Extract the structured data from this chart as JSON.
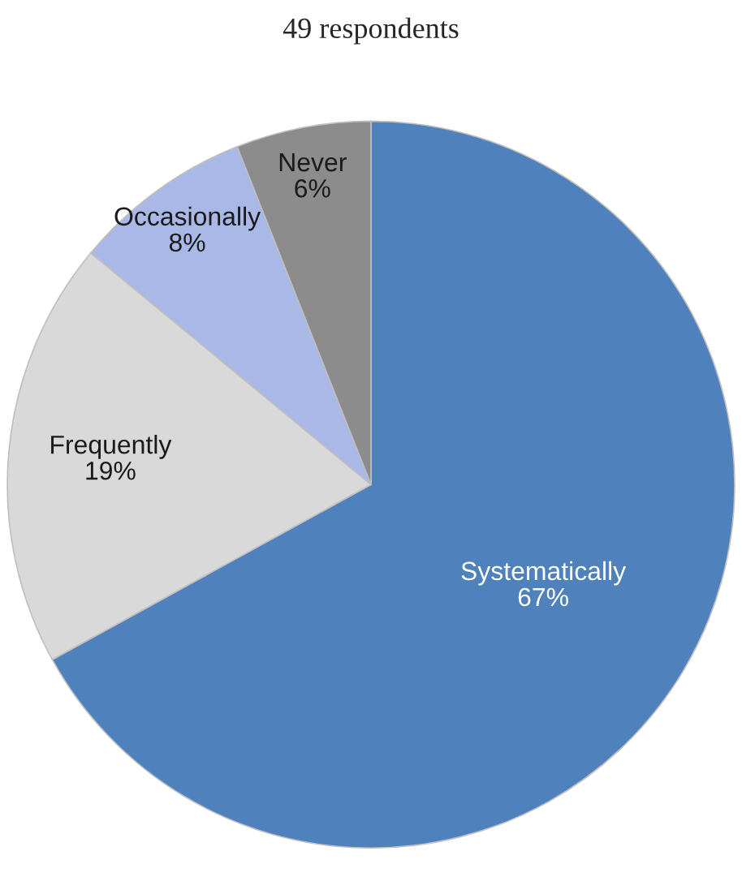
{
  "chart_data": {
    "type": "pie",
    "title": "49 respondents",
    "categories": [
      "Systematically",
      "Frequently",
      "Occasionally",
      "Never"
    ],
    "values": [
      67,
      19,
      8,
      6
    ],
    "value_labels": [
      "67%",
      "19%",
      "8%",
      "6%"
    ],
    "colors": [
      "#4f81bd",
      "#d9d9d9",
      "#a9b8e6",
      "#8c8c8c"
    ],
    "legend": false
  }
}
